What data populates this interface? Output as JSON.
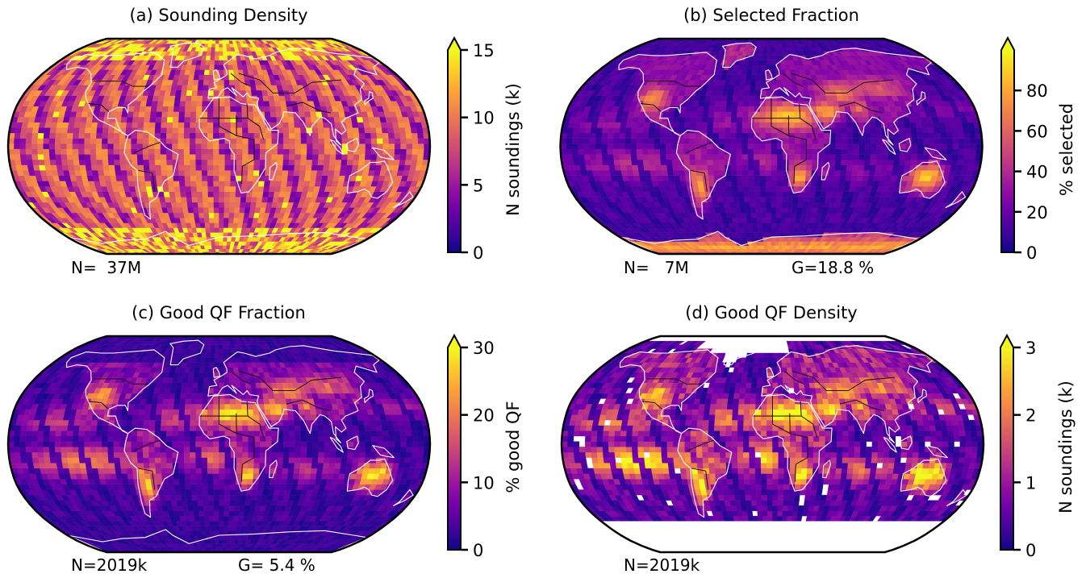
{
  "figure": {
    "type": "map-panels",
    "panels": [
      {
        "id": "a",
        "title": "(a) Sounding Density",
        "colorbar": {
          "label": "N soundings (k)",
          "min": 0,
          "max": 15,
          "extend": "max",
          "ticks": [
            0,
            5,
            10,
            15
          ],
          "tick_labels": [
            "0",
            "5",
            "10",
            "15"
          ]
        },
        "annotations": {
          "n_text": "N=  37M",
          "g_text": ""
        },
        "pattern": "density",
        "masked_south_of_lat": null
      },
      {
        "id": "b",
        "title": "(b) Selected Fraction",
        "colorbar": {
          "label": "% selected",
          "min": 0,
          "max": 100,
          "extend": "max",
          "ticks": [
            0,
            20,
            40,
            60,
            80
          ],
          "tick_labels": [
            "0",
            "20",
            "40",
            "60",
            "80"
          ]
        },
        "annotations": {
          "n_text": "N=   7M",
          "g_text": "G=18.8 %"
        },
        "pattern": "selected",
        "masked_south_of_lat": null
      },
      {
        "id": "c",
        "title": "(c) Good QF Fraction",
        "colorbar": {
          "label": "% good QF",
          "min": 0,
          "max": 30,
          "extend": "max",
          "ticks": [
            0,
            10,
            20,
            30
          ],
          "tick_labels": [
            "0",
            "10",
            "20",
            "30"
          ]
        },
        "annotations": {
          "n_text": "N=2019k",
          "g_text": "G= 5.4 %"
        },
        "pattern": "goodfrac",
        "masked_south_of_lat": null
      },
      {
        "id": "d",
        "title": "(d) Good QF Density",
        "colorbar": {
          "label": "N soundings (k)",
          "min": 0,
          "max": 3,
          "extend": "max",
          "ticks": [
            0,
            1,
            2,
            3
          ],
          "tick_labels": [
            "0",
            "1",
            "2",
            "3"
          ]
        },
        "annotations": {
          "n_text": "N=2019k",
          "g_text": ""
        },
        "pattern": "gooddens",
        "masked_south_of_lat": -60
      }
    ],
    "projection": "Robinson",
    "colormap": "plasma",
    "grid": {
      "lon_step_deg": 5,
      "lat_step_deg": 4
    },
    "colors": {
      "coastline": "#ffffff",
      "borders": "#000000",
      "frame": "#000000",
      "background": "#ffffff"
    }
  },
  "chart_data": [
    {
      "type": "heatmap",
      "title": "(a) Sounding Density",
      "colorbar_label": "N soundings (k)",
      "vmin": 0,
      "vmax": 15,
      "total": "37M"
    },
    {
      "type": "heatmap",
      "title": "(b) Selected Fraction",
      "colorbar_label": "% selected",
      "vmin": 0,
      "vmax": 100,
      "total": "7M",
      "global_fraction_pct": 18.8
    },
    {
      "type": "heatmap",
      "title": "(c) Good QF Fraction",
      "colorbar_label": "% good QF",
      "vmin": 0,
      "vmax": 30,
      "total": "2019k",
      "global_fraction_pct": 5.4
    },
    {
      "type": "heatmap",
      "title": "(d) Good QF Density",
      "colorbar_label": "N soundings (k)",
      "vmin": 0,
      "vmax": 3,
      "total": "2019k"
    }
  ]
}
